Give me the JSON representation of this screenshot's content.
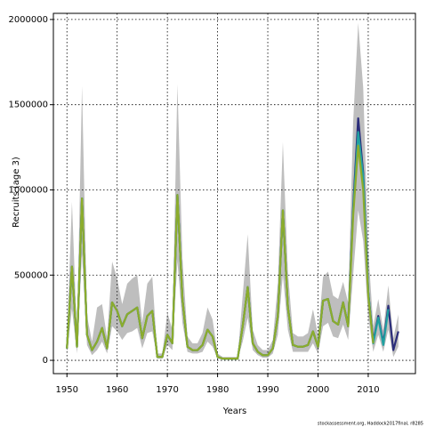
{
  "chart_data": {
    "type": "line",
    "x_label": "Years",
    "y_label": "Recruits (age 3)",
    "footnote": "stockassessment.org, Haddock2017final, r8285",
    "x": [
      1950,
      1951,
      1952,
      1953,
      1954,
      1955,
      1956,
      1957,
      1958,
      1959,
      1960,
      1961,
      1962,
      1963,
      1964,
      1965,
      1966,
      1967,
      1968,
      1969,
      1970,
      1971,
      1972,
      1973,
      1974,
      1975,
      1976,
      1977,
      1978,
      1979,
      1980,
      1981,
      1982,
      1983,
      1984,
      1985,
      1986,
      1987,
      1988,
      1989,
      1990,
      1991,
      1992,
      1993,
      1994,
      1995,
      1996,
      1997,
      1998,
      1999,
      2000,
      2001,
      2002,
      2003,
      2004,
      2005,
      2006,
      2007,
      2008,
      2009,
      2010,
      2011,
      2012,
      2013,
      2014,
      2015,
      2016
    ],
    "band": {
      "color": "#bebebe",
      "lower": [
        40000,
        300000,
        40000,
        620000,
        90000,
        30000,
        60000,
        110000,
        40000,
        200000,
        170000,
        120000,
        160000,
        170000,
        190000,
        70000,
        160000,
        170000,
        10000,
        10000,
        90000,
        60000,
        580000,
        220000,
        50000,
        40000,
        40000,
        50000,
        110000,
        80000,
        10000,
        5000,
        5000,
        5000,
        5000,
        110000,
        250000,
        60000,
        30000,
        15000,
        15000,
        40000,
        150000,
        500000,
        180000,
        50000,
        50000,
        50000,
        50000,
        100000,
        40000,
        200000,
        220000,
        140000,
        130000,
        210000,
        120000,
        500000,
        880000,
        700000,
        250000,
        50000,
        150000,
        50000,
        180000,
        20000,
        80000
      ],
      "upper": [
        120000,
        930000,
        150000,
        1610000,
        260000,
        110000,
        310000,
        330000,
        130000,
        580000,
        480000,
        330000,
        450000,
        480000,
        500000,
        220000,
        450000,
        490000,
        40000,
        40000,
        280000,
        180000,
        1620000,
        600000,
        140000,
        100000,
        100000,
        160000,
        310000,
        240000,
        40000,
        20000,
        20000,
        20000,
        20000,
        380000,
        740000,
        180000,
        90000,
        60000,
        60000,
        120000,
        450000,
        1280000,
        520000,
        160000,
        140000,
        140000,
        160000,
        300000,
        150000,
        490000,
        520000,
        380000,
        360000,
        460000,
        340000,
        1400000,
        1980000,
        1600000,
        650000,
        200000,
        360000,
        180000,
        440000,
        130000,
        270000
      ]
    },
    "series": [
      {
        "color": "#2b2d7a",
        "values": [
          70000,
          550000,
          80000,
          950000,
          150000,
          60000,
          110000,
          190000,
          70000,
          340000,
          290000,
          200000,
          270000,
          290000,
          310000,
          130000,
          260000,
          290000,
          20000,
          20000,
          150000,
          100000,
          970000,
          360000,
          80000,
          60000,
          60000,
          90000,
          180000,
          140000,
          20000,
          10000,
          10000,
          10000,
          10000,
          200000,
          430000,
          100000,
          50000,
          30000,
          30000,
          70000,
          260000,
          880000,
          310000,
          90000,
          80000,
          80000,
          90000,
          170000,
          80000,
          350000,
          360000,
          230000,
          210000,
          340000,
          200000,
          900000,
          1420000,
          1100000,
          400000,
          110000,
          260000,
          100000,
          320000,
          60000,
          170000
        ]
      },
      {
        "color": "#20a0a0",
        "values": [
          70000,
          550000,
          80000,
          950000,
          150000,
          60000,
          110000,
          190000,
          70000,
          340000,
          290000,
          200000,
          270000,
          290000,
          310000,
          130000,
          260000,
          290000,
          20000,
          20000,
          150000,
          100000,
          970000,
          360000,
          80000,
          60000,
          60000,
          90000,
          180000,
          140000,
          20000,
          10000,
          10000,
          10000,
          10000,
          200000,
          430000,
          100000,
          50000,
          30000,
          30000,
          70000,
          260000,
          880000,
          310000,
          90000,
          80000,
          80000,
          90000,
          170000,
          80000,
          350000,
          360000,
          230000,
          210000,
          340000,
          200000,
          880000,
          1340000,
          1080000,
          400000,
          100000,
          250000,
          90000,
          300000,
          null,
          null
        ]
      },
      {
        "color": "#8cac2c",
        "values": [
          70000,
          550000,
          80000,
          950000,
          150000,
          60000,
          110000,
          190000,
          70000,
          340000,
          290000,
          200000,
          270000,
          290000,
          310000,
          130000,
          260000,
          290000,
          20000,
          20000,
          150000,
          100000,
          970000,
          360000,
          80000,
          60000,
          60000,
          90000,
          180000,
          140000,
          20000,
          10000,
          10000,
          10000,
          10000,
          200000,
          430000,
          100000,
          50000,
          30000,
          30000,
          70000,
          260000,
          880000,
          310000,
          90000,
          80000,
          80000,
          90000,
          170000,
          80000,
          350000,
          360000,
          230000,
          210000,
          340000,
          200000,
          850000,
          1260000,
          1000000,
          380000,
          100000,
          null,
          null,
          null,
          null,
          null
        ]
      }
    ],
    "xlim": [
      1947.3,
      2019.4
    ],
    "ylim": [
      -78000,
      2036000
    ],
    "xticks": [
      1950,
      1960,
      1970,
      1980,
      1990,
      2000,
      2010
    ],
    "yticks": [
      0,
      500000,
      1000000,
      1500000,
      2000000
    ],
    "grid": true
  }
}
